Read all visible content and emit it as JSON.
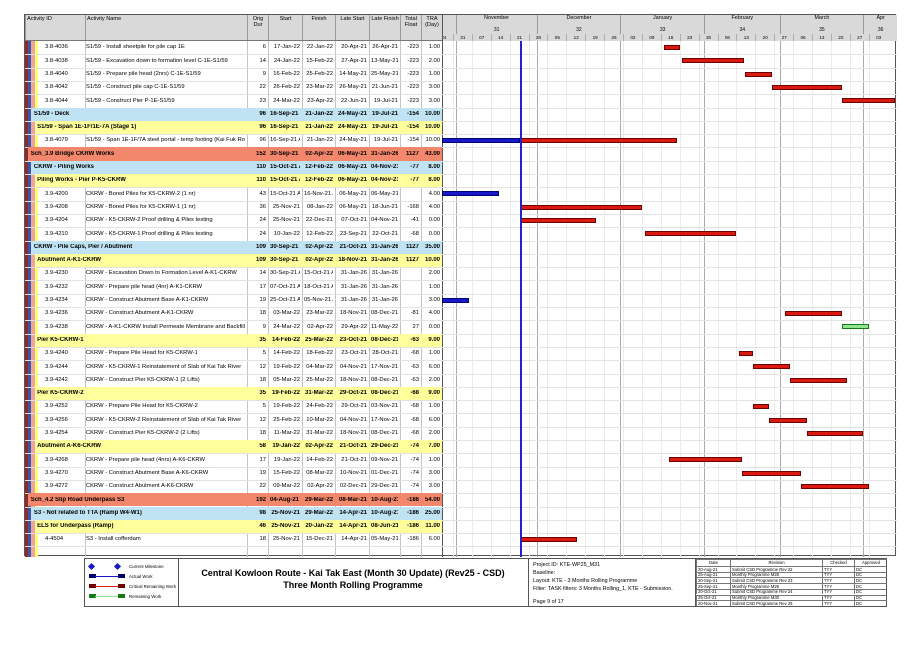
{
  "chart_data": {
    "type": "table",
    "subtype": "gantt",
    "title": "Central Kowloon Route - Kai Tak East (Month 30 Update) (Rev25 - CSD) Three Month Rolling Programme",
    "columns": [
      "Activity ID",
      "Activity Name",
      "Orig Dur",
      "Start",
      "Finish",
      "Late Start",
      "Late Finish",
      "Total Float",
      "TRA (Day)"
    ],
    "timeline": {
      "origin": "2021-10-24",
      "end": "2022-04-14",
      "data_date": "2021-11-25",
      "months": [
        {
          "label": "",
          "number": "",
          "from": "2021-10-24",
          "to": "2021-11-01"
        },
        {
          "label": "November",
          "number": "31",
          "from": "2021-11-01",
          "to": "2021-12-01"
        },
        {
          "label": "December",
          "number": "32",
          "from": "2021-12-01",
          "to": "2022-01-01"
        },
        {
          "label": "January",
          "number": "33",
          "from": "2022-01-01",
          "to": "2022-02-01"
        },
        {
          "label": "February",
          "number": "34",
          "from": "2022-02-01",
          "to": "2022-03-01"
        },
        {
          "label": "March",
          "number": "35",
          "from": "2022-03-01",
          "to": "2022-04-01"
        },
        {
          "label": "Apr",
          "number": "36",
          "from": "2022-04-01",
          "to": "2022-04-14"
        }
      ],
      "week_ticks": [
        "24",
        "31",
        "07",
        "14",
        "21",
        "28",
        "05",
        "12",
        "19",
        "26",
        "02",
        "09",
        "16",
        "23",
        "30",
        "06",
        "13",
        "20",
        "27",
        "06",
        "13",
        "20",
        "27",
        "03"
      ]
    },
    "rows": [
      {
        "type": "a",
        "id": "3.8-4036",
        "name": "S1/59 - Install sheetpile for pile cap 1E",
        "dur": "6",
        "start": "17-Jan-22",
        "finish": "22-Jan-22",
        "late_start": "20-Apr-21",
        "late_finish": "26-Apr-21",
        "float": "-223",
        "tra": "1.00"
      },
      {
        "type": "a",
        "id": "3.8-4038",
        "name": "S1/59 - Excavation down to formation level C-1E-S1/59",
        "dur": "14",
        "start": "24-Jan-22",
        "finish": "15-Feb-22",
        "late_start": "27-Apr-21",
        "late_finish": "13-May-21",
        "float": "-223",
        "tra": "2.00"
      },
      {
        "type": "a",
        "id": "3.8-4040",
        "name": "S1/59 - Prepare pile head (2nrs) C-1E-S1/59",
        "dur": "9",
        "start": "16-Feb-22",
        "finish": "25-Feb-22",
        "late_start": "14-May-21",
        "late_finish": "25-May-21",
        "float": "-223",
        "tra": "1.00"
      },
      {
        "type": "a",
        "id": "3.8-4042",
        "name": "S1/59 - Construct pile cap C-1E-S1/59",
        "dur": "22",
        "start": "26-Feb-22",
        "finish": "23-Mar-22",
        "late_start": "26-May-21",
        "late_finish": "21-Jun-21",
        "float": "-223",
        "tra": "3.00"
      },
      {
        "type": "a",
        "id": "3.8-4044",
        "name": "S1/59 - Construct Pier P-1E-S1/59",
        "dur": "23",
        "start": "24-Mar-22",
        "finish": "23-Apr-22",
        "late_start": "22-Jun-21",
        "late_finish": "19-Jul-21",
        "float": "-223",
        "tra": "3.00"
      },
      {
        "type": "s2",
        "id": "",
        "name": "S1/59 - Deck",
        "dur": "96",
        "start": "16-Sep-21 A",
        "finish": "21-Jan-22",
        "late_start": "24-May-21",
        "late_finish": "19-Jul-21",
        "float": "-154",
        "tra": "10.00"
      },
      {
        "type": "s3",
        "id": "",
        "name": "S1/59 - Span 1E-1F/1E-7A (Stage 1)",
        "dur": "96",
        "start": "16-Sep-21 A",
        "finish": "21-Jan-22",
        "late_start": "24-May-21",
        "late_finish": "19-Jul-21",
        "float": "-154",
        "tra": "10.00"
      },
      {
        "type": "a",
        "id": "3.8-4079",
        "name": "S1/59 - Span 1E-1F/7A steel portal - temp footing (Kai Fuk Road) Night works",
        "dur": "96",
        "start": "16-Sep-21 A",
        "finish": "21-Jan-22",
        "late_start": "24-May-21",
        "late_finish": "19-Jul-21",
        "float": "-154",
        "tra": "10.00"
      },
      {
        "type": "s1",
        "id": "",
        "name": "Sch_3.9 Bridge CKRW Works",
        "dur": "152",
        "start": "30-Sep-21 A",
        "finish": "02-Apr-22",
        "late_start": "06-May-21",
        "late_finish": "31-Jan-26",
        "float": "1127",
        "tra": "43.00"
      },
      {
        "type": "s2",
        "id": "",
        "name": "CKRW - Piling Works",
        "dur": "110",
        "start": "15-Oct-21 A",
        "finish": "12-Feb-22",
        "late_start": "06-May-21",
        "late_finish": "04-Nov-21",
        "float": "-77",
        "tra": "8.00"
      },
      {
        "type": "s3",
        "id": "",
        "name": "Piling Works - Pier P-K5-CKRW",
        "dur": "110",
        "start": "15-Oct-21 A",
        "finish": "12-Feb-22",
        "late_start": "06-May-21",
        "late_finish": "04-Nov-21",
        "float": "-77",
        "tra": "8.00"
      },
      {
        "type": "a",
        "id": "3.9-4200",
        "name": "CKRW - Bored Piles for K5-CKRW-2 (1 nr)",
        "dur": "43",
        "start": "15-Oct-21 A",
        "finish": "16-Nov-21 A",
        "late_start": "06-May-21",
        "late_finish": "06-May-21",
        "float": "",
        "tra": "4.00"
      },
      {
        "type": "a",
        "id": "3.9-4208",
        "name": "CKRW - Bored Piles for K5-CKRW-1 (1 nr)",
        "dur": "36",
        "start": "25-Nov-21",
        "finish": "08-Jan-22",
        "late_start": "06-May-21",
        "late_finish": "18-Jun-21",
        "float": "-168",
        "tra": "4.00"
      },
      {
        "type": "a",
        "id": "3.9-4204",
        "name": "CKRW - K5-CKRW-2 Proof drilling & Piles testing",
        "dur": "24",
        "start": "25-Nov-21",
        "finish": "22-Dec-21",
        "late_start": "07-Oct-21",
        "late_finish": "04-Nov-21",
        "float": "-41",
        "tra": "0.00"
      },
      {
        "type": "a",
        "id": "3.9-4210",
        "name": "CKRW - K5-CKRW-1 Proof drilling & Piles testing",
        "dur": "24",
        "start": "10-Jan-22",
        "finish": "12-Feb-22",
        "late_start": "23-Sep-21",
        "late_finish": "22-Oct-21",
        "float": "-68",
        "tra": "0.00"
      },
      {
        "type": "s2",
        "id": "",
        "name": "CKRW - Pile Caps, Pier / Abutment",
        "dur": "109",
        "start": "30-Sep-21 A",
        "finish": "02-Apr-22",
        "late_start": "21-Oct-21",
        "late_finish": "31-Jan-26",
        "float": "1127",
        "tra": "35.00"
      },
      {
        "type": "s3",
        "id": "",
        "name": "Abutment A-K1-CKRW",
        "dur": "109",
        "start": "30-Sep-21 A",
        "finish": "02-Apr-22",
        "late_start": "18-Nov-21",
        "late_finish": "31-Jan-26",
        "float": "1127",
        "tra": "10.00"
      },
      {
        "type": "a",
        "id": "3.9-4230",
        "name": "CKRW - Excavation Down to Formation Level A-K1-CKRW",
        "dur": "14",
        "start": "30-Sep-21 A",
        "finish": "15-Oct-21 A",
        "late_start": "31-Jan-26",
        "late_finish": "31-Jan-26",
        "float": "",
        "tra": "2.00"
      },
      {
        "type": "a",
        "id": "3.9-4232",
        "name": "CKRW - Prepare pile head (4nr) A-K1-CKRW",
        "dur": "17",
        "start": "07-Oct-21 A",
        "finish": "18-Oct-21 A",
        "late_start": "31-Jan-26",
        "late_finish": "31-Jan-26",
        "float": "",
        "tra": "1.00"
      },
      {
        "type": "a",
        "id": "3.9-4234",
        "name": "CKRW - Construct Abutment Base A-K1-CKRW",
        "dur": "19",
        "start": "25-Oct-21 A",
        "finish": "05-Nov-21 A",
        "late_start": "31-Jan-26",
        "late_finish": "31-Jan-26",
        "float": "",
        "tra": "3.00"
      },
      {
        "type": "a",
        "id": "3.9-4236",
        "name": "CKRW - Construct Abutment A-K1-CKRW",
        "dur": "18",
        "start": "03-Mar-22",
        "finish": "23-Mar-22",
        "late_start": "18-Nov-21",
        "late_finish": "08-Dec-21",
        "float": "-81",
        "tra": "4.00"
      },
      {
        "type": "a",
        "id": "3.9-4238",
        "name": "CKRW - A-K1-CKRW Install Permeate Membrane and Backfill",
        "dur": "9",
        "start": "24-Mar-22",
        "finish": "02-Apr-22",
        "late_start": "29-Apr-22",
        "late_finish": "11-May-22",
        "float": "27",
        "tra": "0.00"
      },
      {
        "type": "s3",
        "id": "",
        "name": "Pier K5-CKRW-1",
        "dur": "35",
        "start": "14-Feb-22",
        "finish": "25-Mar-22",
        "late_start": "23-Oct-21",
        "late_finish": "08-Dec-21",
        "float": "-63",
        "tra": "9.00"
      },
      {
        "type": "a",
        "id": "3.9-4240",
        "name": "CKRW - Prepare Pile Head for K5-CKRW-1",
        "dur": "5",
        "start": "14-Feb-22",
        "finish": "18-Feb-22",
        "late_start": "23-Oct-21",
        "late_finish": "28-Oct-21",
        "float": "-68",
        "tra": "1.00"
      },
      {
        "type": "a",
        "id": "3.9-4244",
        "name": "CKRW - K5-CKRW-1 Reinstatement of Slab of Kai Tak River",
        "dur": "12",
        "start": "19-Feb-22",
        "finish": "04-Mar-22",
        "late_start": "04-Nov-21",
        "late_finish": "17-Nov-21",
        "float": "-63",
        "tra": "6.00"
      },
      {
        "type": "a",
        "id": "3.9-4242",
        "name": "CKRW - Construct Pier K5-CKRW-1 (2 Lifts)",
        "dur": "18",
        "start": "05-Mar-22",
        "finish": "25-Mar-22",
        "late_start": "18-Nov-21",
        "late_finish": "08-Dec-21",
        "float": "-63",
        "tra": "2.00"
      },
      {
        "type": "s3",
        "id": "",
        "name": "Pier K5-CKRW-2",
        "dur": "35",
        "start": "19-Feb-22",
        "finish": "31-Mar-22",
        "late_start": "29-Oct-21",
        "late_finish": "08-Dec-21",
        "float": "-68",
        "tra": "9.00"
      },
      {
        "type": "a",
        "id": "3.9-4252",
        "name": "CKRW - Prepare Pile Head for K5-CKRW-2",
        "dur": "5",
        "start": "19-Feb-22",
        "finish": "24-Feb-22",
        "late_start": "29-Oct-21",
        "late_finish": "03-Nov-21",
        "float": "-68",
        "tra": "1.00"
      },
      {
        "type": "a",
        "id": "3.9-4256",
        "name": "CKRW - K5-CKRW-2 Reinstatement of Slab of Kai Tak River",
        "dur": "12",
        "start": "25-Feb-22",
        "finish": "10-Mar-22",
        "late_start": "04-Nov-21",
        "late_finish": "17-Nov-21",
        "float": "-68",
        "tra": "6.00"
      },
      {
        "type": "a",
        "id": "3.9-4254",
        "name": "CKRW - Construct Pier K5-CKRW-2 (2 Lifts)",
        "dur": "18",
        "start": "11-Mar-22",
        "finish": "31-Mar-22",
        "late_start": "18-Nov-21",
        "late_finish": "08-Dec-21",
        "float": "-68",
        "tra": "2.00"
      },
      {
        "type": "s3",
        "id": "",
        "name": "Abutment A-K6-CKRW",
        "dur": "58",
        "start": "19-Jan-22",
        "finish": "02-Apr-22",
        "late_start": "21-Oct-21",
        "late_finish": "29-Dec-21",
        "float": "-74",
        "tra": "7.00"
      },
      {
        "type": "a",
        "id": "3.9-4268",
        "name": "CKRW - Prepare pile head (4nrs) A-K6-CKRW",
        "dur": "17",
        "start": "19-Jan-22",
        "finish": "14-Feb-22",
        "late_start": "21-Oct-21",
        "late_finish": "09-Nov-21",
        "float": "-74",
        "tra": "1.00"
      },
      {
        "type": "a",
        "id": "3.9-4270",
        "name": "CKRW - Construct Abutment Base A-K6-CKRW",
        "dur": "19",
        "start": "15-Feb-22",
        "finish": "08-Mar-22",
        "late_start": "10-Nov-21",
        "late_finish": "01-Dec-21",
        "float": "-74",
        "tra": "3.00"
      },
      {
        "type": "a",
        "id": "3.9-4272",
        "name": "CKRW - Construct Abutment A-K6-CKRW",
        "dur": "22",
        "start": "09-Mar-22",
        "finish": "02-Apr-22",
        "late_start": "02-Dec-21",
        "late_finish": "29-Dec-21",
        "float": "-74",
        "tra": "3.00"
      },
      {
        "type": "s1",
        "id": "",
        "name": "Sch_4.2 Slip Road Underpass S3",
        "dur": "192",
        "start": "04-Aug-21 A",
        "finish": "29-Mar-22",
        "late_start": "08-Mar-21",
        "late_finish": "10-Aug-21",
        "float": "-186",
        "tra": "54.00"
      },
      {
        "type": "s2",
        "id": "",
        "name": "S3 - Not related to TTA (Ramp W4-W1)",
        "dur": "98",
        "start": "25-Nov-21",
        "finish": "29-Mar-22",
        "late_start": "14-Apr-21",
        "late_finish": "10-Aug-21",
        "float": "-186",
        "tra": "25.00"
      },
      {
        "type": "s3",
        "id": "",
        "name": "ELS for Underpass (Ramp)",
        "dur": "46",
        "start": "25-Nov-21",
        "finish": "20-Jan-22",
        "late_start": "14-Apr-21",
        "late_finish": "08-Jun-21",
        "float": "-186",
        "tra": "11.00"
      },
      {
        "type": "a",
        "id": "4-4504",
        "name": "S3 - Install cofferdam",
        "dur": "18",
        "start": "25-Nov-21",
        "finish": "15-Dec-21",
        "late_start": "14-Apr-21",
        "late_finish": "05-May-21",
        "float": "-186",
        "tra": "6.00"
      }
    ]
  },
  "colors": {
    "actual": "#1818c8",
    "critical": "#d81a10",
    "remaining": "#92e492",
    "data_date_line": "#2222cc",
    "summary1": "#f2876b",
    "summary2": "#bfe3f2",
    "summary3": "#ffff9c",
    "stripes": [
      "#8b2b2b",
      "#3c55a8",
      "#f0a49e",
      "#ffff70"
    ]
  },
  "legend": {
    "items": [
      {
        "label": "Current Milestone",
        "kind": "milestone",
        "fill": "#1818c8",
        "end": "#00006e"
      },
      {
        "label": "Actual Work",
        "kind": "bar",
        "fill": "#1818c8",
        "end": "#00006e"
      },
      {
        "label": "Critical Remaining Work",
        "kind": "bar",
        "fill": "#d81a10",
        "end": "#6e0000"
      },
      {
        "label": "Remaining Work",
        "kind": "bar",
        "fill": "#92e492",
        "end": "#167a16"
      }
    ]
  },
  "title_block": {
    "line1": "Central Kowloon Route - Kai Tak East (Month 30 Update) (Rev25 - CSD)",
    "line2": "Three Month Rolling Programme"
  },
  "info_block": {
    "project_id": "Project ID: KTE-WP25_M31",
    "baseline": "Baseline:",
    "layout": "Layout: KTE - 3 Months Rolling Programme",
    "filter": "Filter: TASK filters: 3 Months Rolling_1, KTE - Submission.",
    "page": "Page 9 of 17"
  },
  "revisions": {
    "columns": [
      "Date",
      "Revision",
      "Checked",
      "Approved"
    ],
    "rows": [
      [
        "20-Aug-21",
        "Submit CSD Programme Rev 22",
        "TYY",
        "DC"
      ],
      [
        "25-Aug-21",
        "Monthly Programme M28",
        "TYY",
        "DC"
      ],
      [
        "20-Sep-21",
        "Submit CSD Programme Rev 23",
        "TYY",
        "DC"
      ],
      [
        "25-Sep-21",
        "Monthly Programme M29",
        "TYY",
        "DC"
      ],
      [
        "20-Oct-21",
        "Submit CSD Programme Rev 24",
        "TYY",
        "DC"
      ],
      [
        "25-Oct-21",
        "Monthly Programme M30",
        "TYY",
        "DC"
      ],
      [
        "20-Nov-21",
        "Submit CSD Programme Rev 25",
        "TYY",
        "DC"
      ]
    ]
  }
}
